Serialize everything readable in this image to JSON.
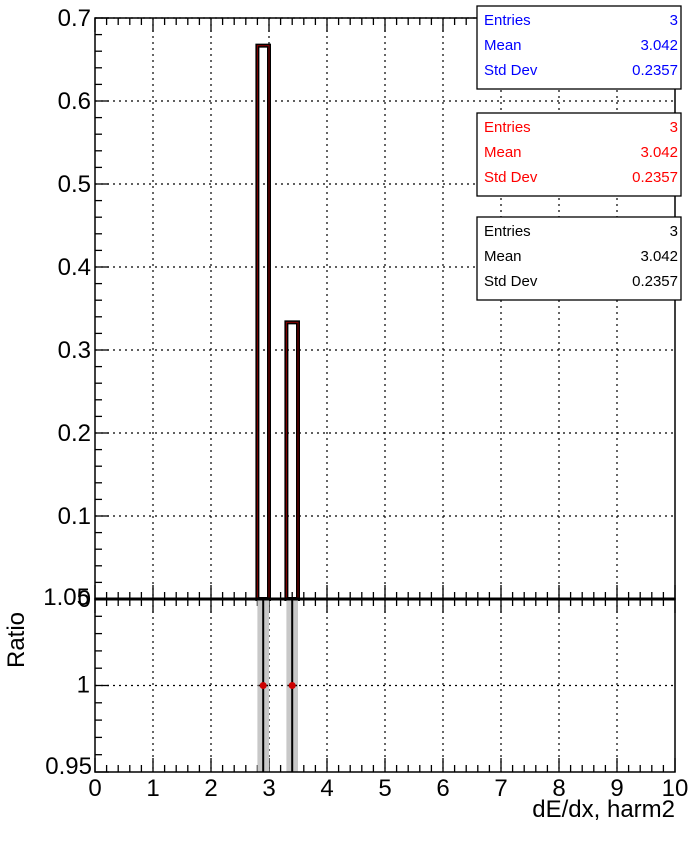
{
  "chart_data": [
    {
      "type": "bar",
      "panel": "main",
      "xlim": [
        0,
        10
      ],
      "ylim": [
        0,
        0.7
      ],
      "xtick_labels": [
        "0",
        "1",
        "2",
        "3",
        "4",
        "5",
        "6",
        "7",
        "8",
        "9",
        "10"
      ],
      "ytick_labels": [
        "0",
        "0.1",
        "0.2",
        "0.3",
        "0.4",
        "0.5",
        "0.6",
        "0.7"
      ],
      "grid": true,
      "bins": [
        {
          "x_low": 2.8,
          "x_high": 3.0,
          "value": 0.6667
        },
        {
          "x_low": 3.3,
          "x_high": 3.5,
          "value": 0.3333
        }
      ],
      "stat_boxes": [
        {
          "color": "#0000ff",
          "rows": [
            {
              "label": "Entries",
              "value": "3"
            },
            {
              "label": "Mean",
              "value": "3.042"
            },
            {
              "label": "Std Dev",
              "value": "0.2357"
            }
          ]
        },
        {
          "color": "#ff0000",
          "rows": [
            {
              "label": "Entries",
              "value": "3"
            },
            {
              "label": "Mean",
              "value": "3.042"
            },
            {
              "label": "Std Dev",
              "value": "0.2357"
            }
          ]
        },
        {
          "color": "#000000",
          "rows": [
            {
              "label": "Entries",
              "value": "3"
            },
            {
              "label": "Mean",
              "value": "3.042"
            },
            {
              "label": "Std Dev",
              "value": "0.2357"
            }
          ]
        }
      ]
    },
    {
      "type": "scatter",
      "panel": "ratio",
      "xlim": [
        0,
        10
      ],
      "ylim": [
        0.95,
        1.05
      ],
      "ylabel": "Ratio",
      "xlabel": "dE/dx, harm2",
      "ytick_labels": [
        "0.95",
        "1",
        "1.05"
      ],
      "grid": true,
      "points": [
        {
          "x": 2.9,
          "y": 1.0,
          "x_low": 2.8,
          "x_high": 3.0
        },
        {
          "x": 3.4,
          "y": 1.0,
          "x_low": 3.3,
          "x_high": 3.5
        }
      ]
    }
  ]
}
